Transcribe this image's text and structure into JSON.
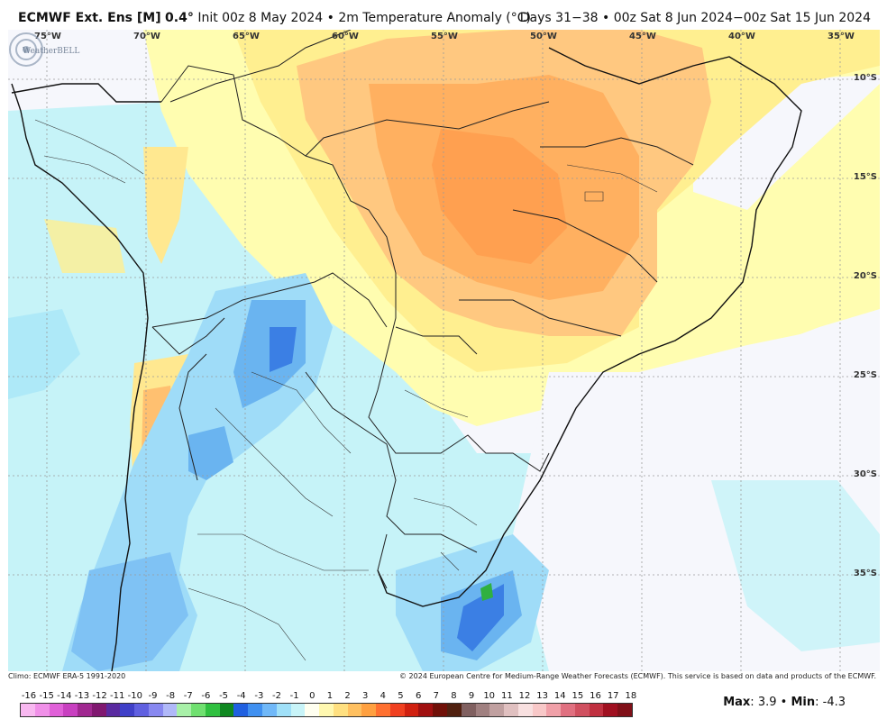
{
  "header": {
    "model": "ECMWF Ext. Ens [M]",
    "resolution": "0.4°",
    "init": "Init 00z 8 May 2024",
    "bullet": "•",
    "variable": "2m Temperature Anomaly (°C)",
    "valid": "Days 31−38 • 00z Sat 8 Jun 2024−00z Sat 15 Jun 2024"
  },
  "map": {
    "lon_labels": [
      "75°W",
      "70°W",
      "65°W",
      "60°W",
      "55°W",
      "50°W",
      "45°W",
      "40°W",
      "35°W"
    ],
    "lat_labels": [
      "10°S",
      "15°S",
      "20°S",
      "25°S",
      "30°S",
      "35°S"
    ],
    "logo_text": "WeatherBELL"
  },
  "footer": {
    "climo": "Climo: ECMWF ERA-5 1991-2020",
    "copyright": "© 2024 European Centre for Medium-Range Weather Forecasts (ECMWF). This service is based on data and products of the ECMWF."
  },
  "colorbar": {
    "labels": [
      "-16",
      "-15",
      "-14",
      "-13",
      "-12",
      "-11",
      "-10",
      "-9",
      "-8",
      "-7",
      "-6",
      "-5",
      "-4",
      "-3",
      "-2",
      "-1",
      "0",
      "1",
      "2",
      "3",
      "4",
      "5",
      "6",
      "7",
      "8",
      "9",
      "10",
      "11",
      "12",
      "13",
      "14",
      "15",
      "16",
      "17",
      "18"
    ],
    "colors": [
      "#f8b8f0",
      "#f090e8",
      "#e060d8",
      "#c840c0",
      "#a02890",
      "#801870",
      "#5a2aa0",
      "#4040c8",
      "#6060e0",
      "#8888f0",
      "#b0b8f8",
      "#a8f0a8",
      "#70e070",
      "#30c040",
      "#108820",
      "#2060e0",
      "#4090f0",
      "#70b8f8",
      "#a0e0f8",
      "#c8f4f8",
      "#fffff0",
      "#fff8b0",
      "#ffe080",
      "#ffc060",
      "#ffa040",
      "#ff7030",
      "#f04020",
      "#d02010",
      "#a01010",
      "#701008",
      "#502010",
      "#806060",
      "#a08080",
      "#c0a0a0",
      "#e0c0c0",
      "#f8e0e0",
      "#f8c8c8",
      "#f0a0a8",
      "#e07080",
      "#d05060",
      "#c03040",
      "#a01020",
      "#801018"
    ]
  },
  "stats": {
    "max_label": "Max",
    "max_value": "3.9",
    "min_label": "Min",
    "min_value": "-4.3",
    "separator": "•"
  }
}
